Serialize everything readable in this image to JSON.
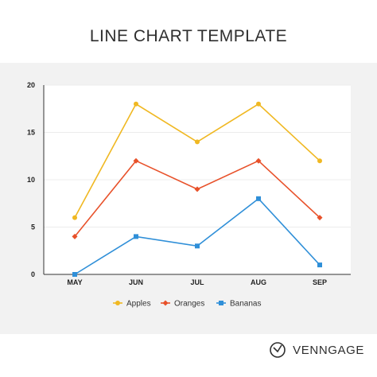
{
  "page": {
    "title": "LINE CHART TEMPLATE",
    "brand": "VENNGAGE",
    "brand_icon": "venngage-logo-icon"
  },
  "chart_data": {
    "type": "line",
    "title": "",
    "xlabel": "",
    "ylabel": "",
    "categories": [
      "MAY",
      "JUN",
      "JUL",
      "AUG",
      "SEP"
    ],
    "ylim": [
      0,
      20
    ],
    "yticks": [
      0,
      5,
      10,
      15,
      20
    ],
    "grid": true,
    "legend_position": "bottom",
    "series": [
      {
        "name": "Apples",
        "values": [
          6,
          18,
          14,
          18,
          12
        ],
        "color": "#f0b822",
        "marker": "circle"
      },
      {
        "name": "Oranges",
        "values": [
          4,
          12,
          9,
          12,
          6
        ],
        "color": "#e8512a",
        "marker": "diamond"
      },
      {
        "name": "Bananas",
        "values": [
          0,
          4,
          3,
          8,
          1
        ],
        "color": "#2f8fd8",
        "marker": "square"
      }
    ]
  }
}
